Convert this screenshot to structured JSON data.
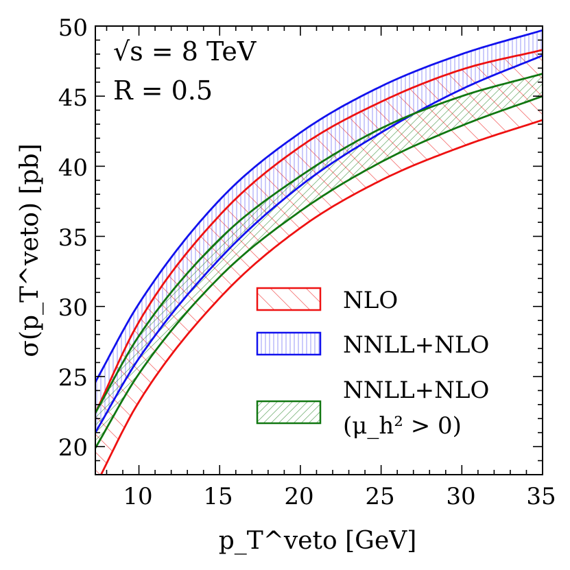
{
  "chart_data": {
    "type": "area",
    "title": "",
    "xlabel": "p_T^veto [GeV]",
    "ylabel": "σ(p_T^veto) [pb]",
    "xlim": [
      7.3,
      35
    ],
    "ylim": [
      18,
      50
    ],
    "xticks": [
      10,
      15,
      20,
      25,
      30,
      35
    ],
    "yticks": [
      20,
      25,
      30,
      35,
      40,
      45,
      50
    ],
    "grid": false,
    "legend_position": "lower-right",
    "annotations": [
      "√s = 8 TeV",
      "R = 0.5"
    ],
    "series": [
      {
        "name": "NLO",
        "color": "#ee1111",
        "hatch": "diagonal-backslash",
        "x": [
          7.3,
          10,
          15,
          20,
          25,
          30,
          35
        ],
        "upper": [
          22.4,
          28.9,
          36.5,
          41.4,
          44.6,
          46.9,
          48.3
        ],
        "lower": [
          17.2,
          23.2,
          30.6,
          35.6,
          39.0,
          41.4,
          43.3
        ]
      },
      {
        "name": "NNLL+NLO",
        "color": "#1111ee",
        "hatch": "vertical",
        "x": [
          7.3,
          10,
          15,
          20,
          25,
          30,
          35
        ],
        "upper": [
          24.6,
          30.2,
          37.6,
          42.4,
          45.7,
          48.0,
          49.7
        ],
        "lower": [
          21.0,
          26.3,
          33.4,
          38.6,
          42.4,
          45.5,
          47.9
        ]
      },
      {
        "name": "NNLL+NLO (μ_h² > 0)",
        "color": "#117711",
        "hatch": "diagonal-slash",
        "x": [
          7.3,
          10,
          15,
          20,
          25,
          30,
          35
        ],
        "upper": [
          22.4,
          27.9,
          34.8,
          39.3,
          42.7,
          45.0,
          46.6
        ],
        "lower": [
          19.9,
          25.2,
          32.1,
          36.8,
          40.3,
          42.9,
          45.0
        ]
      }
    ],
    "legend": [
      {
        "label": "NLO"
      },
      {
        "label": "NNLL+NLO"
      },
      {
        "label_line1": "NNLL+NLO",
        "label_line2": "(μ_h² > 0)"
      }
    ]
  }
}
